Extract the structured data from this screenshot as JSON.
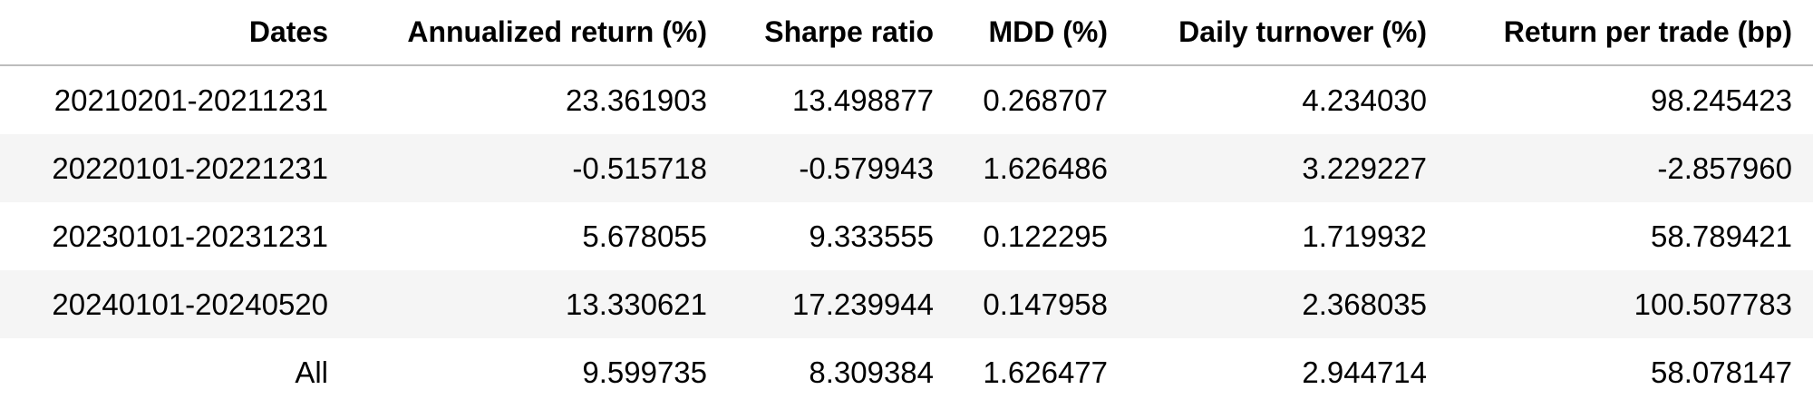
{
  "table": {
    "columns": [
      "Dates",
      "Annualized return (%)",
      "Sharpe ratio",
      "MDD (%)",
      "Daily turnover (%)",
      "Return per trade (bp)"
    ],
    "rows": [
      [
        "20210201-20211231",
        "23.361903",
        "13.498877",
        "0.268707",
        "4.234030",
        "98.245423"
      ],
      [
        "20220101-20221231",
        "-0.515718",
        "-0.579943",
        "1.626486",
        "3.229227",
        "-2.857960"
      ],
      [
        "20230101-20231231",
        "5.678055",
        "9.333555",
        "0.122295",
        "1.719932",
        "58.789421"
      ],
      [
        "20240101-20240520",
        "13.330621",
        "17.239944",
        "0.147958",
        "2.368035",
        "100.507783"
      ],
      [
        "All",
        "9.599735",
        "8.309384",
        "1.626477",
        "2.944714",
        "58.078147"
      ]
    ]
  }
}
